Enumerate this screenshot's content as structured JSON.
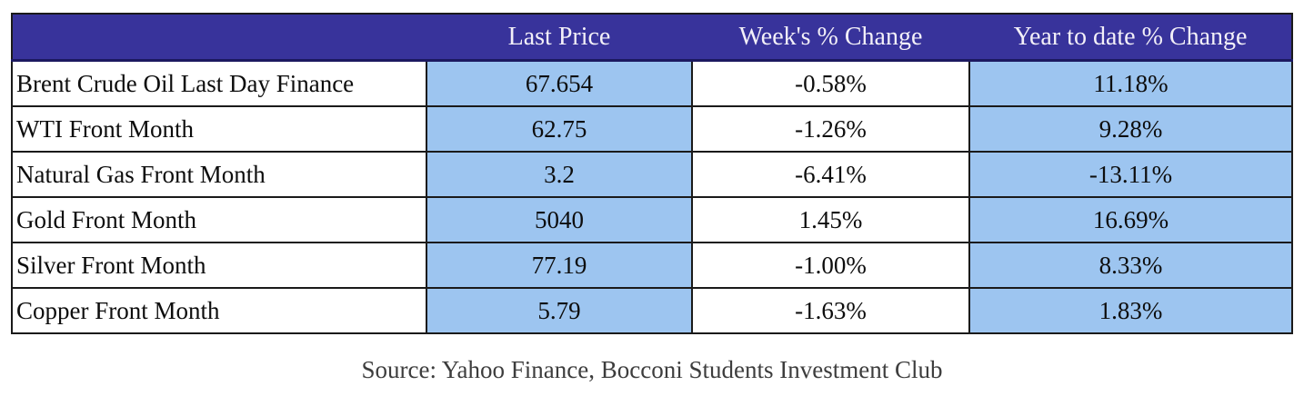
{
  "table": {
    "columns": [
      "",
      "Last Price",
      "Week's % Change",
      "Year to date % Change"
    ],
    "rows": [
      {
        "name": "Brent Crude Oil Last Day Finance",
        "last_price": "67.654",
        "week_change": "-0.58%",
        "ytd_change": "11.18%"
      },
      {
        "name": "WTI Front Month",
        "last_price": "62.75",
        "week_change": "-1.26%",
        "ytd_change": "9.28%"
      },
      {
        "name": "Natural Gas Front Month",
        "last_price": "3.2",
        "week_change": "-6.41%",
        "ytd_change": "-13.11%"
      },
      {
        "name": "Gold Front Month",
        "last_price": "5040",
        "week_change": "1.45%",
        "ytd_change": "16.69%"
      },
      {
        "name": "Silver Front Month",
        "last_price": "77.19",
        "week_change": "-1.00%",
        "ytd_change": "8.33%"
      },
      {
        "name": "Copper Front Month",
        "last_price": "5.79",
        "week_change": "-1.63%",
        "ytd_change": "1.83%"
      }
    ]
  },
  "source_note": "Source: Yahoo Finance, Bocconi Students Investment Club",
  "colors": {
    "header_bg": "#38339B",
    "highlight_bg": "#9DC5F0",
    "header_text": "#F3F0F8",
    "body_text": "#0D0D0D",
    "source_text": "#3D3D3D",
    "grid_line": "#1A1A1A",
    "header_underline": "#1C1960"
  }
}
